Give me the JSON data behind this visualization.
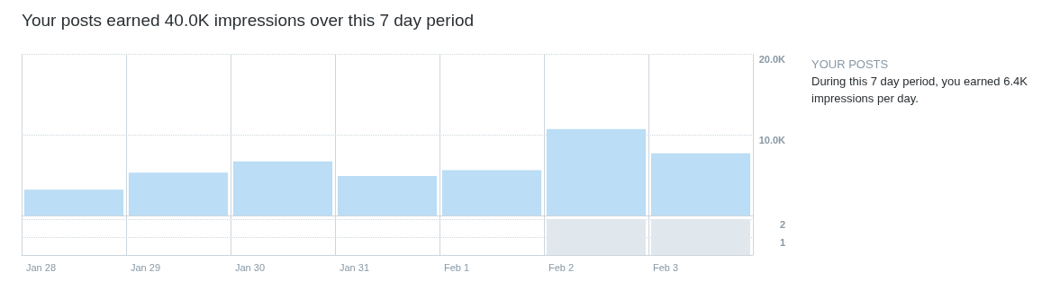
{
  "chart_data": [
    {
      "type": "bar",
      "title": "Your posts earned 40.0K impressions over this 7 day period",
      "categories": [
        "Jan 28",
        "Jan 29",
        "Jan 30",
        "Jan 31",
        "Feb 1",
        "Feb 2",
        "Feb 3"
      ],
      "values": [
        3200,
        5300,
        6700,
        4900,
        5600,
        10700,
        7700
      ],
      "color": "#bbddf5",
      "ylim": [
        0,
        20000
      ],
      "yticks": [
        {
          "value": 10000,
          "label": "10.0K"
        },
        {
          "value": 20000,
          "label": "20.0K"
        }
      ],
      "grid": true,
      "annotations": [
        "YOUR POSTS",
        "During this 7 day period, you earned 6.4K impressions per day."
      ]
    },
    {
      "type": "bar",
      "categories": [
        null,
        null,
        null,
        null,
        null,
        null,
        null
      ],
      "values": [
        0,
        0,
        0,
        0,
        0,
        2,
        2
      ],
      "color": "#e1e8ed",
      "ylim": [
        0,
        2.2
      ],
      "yticks": [
        1,
        2
      ],
      "grid": true
    }
  ]
}
